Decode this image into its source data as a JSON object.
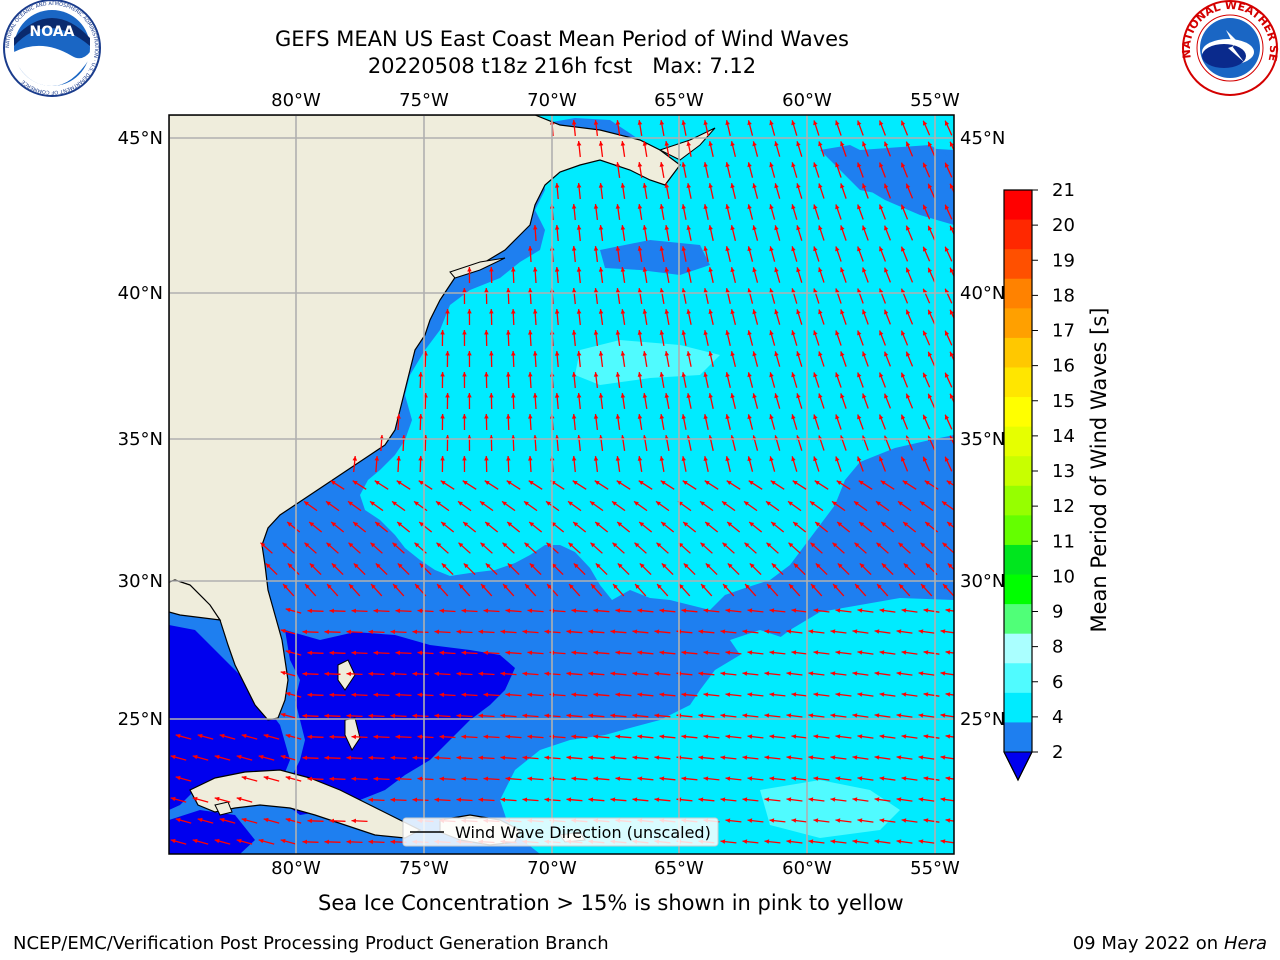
{
  "header": {
    "title_line1": "GEFS MEAN US East Coast Mean Period of Wind Waves",
    "title_line2": "20220508 t18z 216h fcst   Max: 7.12"
  },
  "logos": {
    "left": {
      "name": "noaa-logo",
      "text": "NOAA",
      "ring_text": "NATIONAL OCEANIC AND ATMOSPHERIC ADMINISTRATION · U.S. DEPARTMENT OF COMMERCE"
    },
    "right": {
      "name": "nws-logo",
      "ring_text": "NATIONAL WEATHER SERVICE"
    }
  },
  "map": {
    "lon_labels_top": [
      "80°W",
      "75°W",
      "70°W",
      "65°W",
      "60°W",
      "55°W"
    ],
    "lon_labels_bottom": [
      "80°W",
      "75°W",
      "70°W",
      "65°W",
      "60°W",
      "55°W"
    ],
    "lat_labels_left": [
      "45°N",
      "40°N",
      "35°N",
      "30°N",
      "25°N"
    ],
    "lat_labels_right": [
      "45°N",
      "40°N",
      "35°N",
      "30°N",
      "25°N"
    ],
    "legend_label": "Wind Wave Direction (unscaled)",
    "colors": {
      "land": "#efeddc",
      "band_2_4": "#1e7ff0",
      "band_4_6": "#00ebff",
      "band_6_8": "#50fbff",
      "below_2": "#0000ee",
      "arrow": "#ff0000",
      "grid": "#b0b0b0"
    }
  },
  "colorbar": {
    "title": "Mean Period of Wind Waves [s]",
    "ticks": [
      "21",
      "20",
      "19",
      "18",
      "17",
      "16",
      "15",
      "14",
      "13",
      "12",
      "11",
      "10",
      "9",
      "8",
      "6",
      "4",
      "2"
    ],
    "colors_top_to_bottom": [
      "#ff0000",
      "#ff2800",
      "#ff5000",
      "#ff8200",
      "#ffa000",
      "#ffc800",
      "#ffe600",
      "#ffff00",
      "#e6ff00",
      "#c8ff00",
      "#96ff00",
      "#64ff00",
      "#00e61e",
      "#00ff00",
      "#50ff78",
      "#aaffff",
      "#50fbff",
      "#00ebff",
      "#1e7ff0"
    ],
    "extend_color": "#0000ee"
  },
  "footer": {
    "subtitle": "Sea Ice Concentration > 15% is shown in pink to yellow",
    "left": "NCEP/EMC/Verification Post Processing Product Generation Branch",
    "right_date": "09 May 2022 on",
    "right_host": "Hera"
  }
}
